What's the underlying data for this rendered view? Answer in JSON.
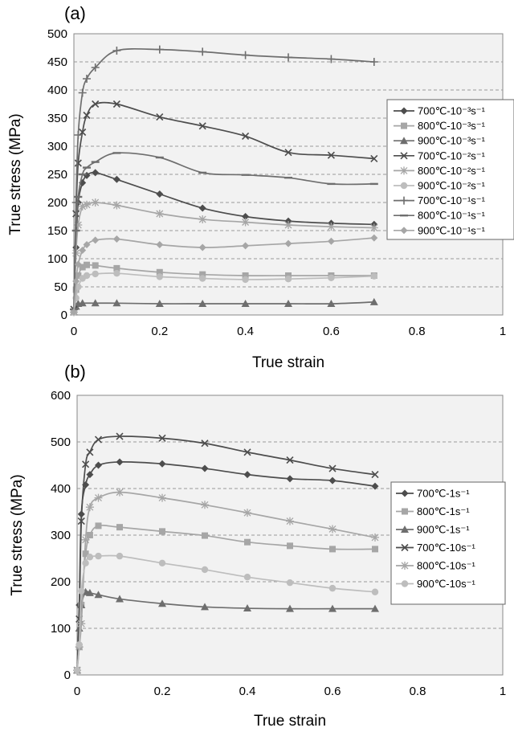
{
  "chart_data": [
    {
      "panel": "(a)",
      "type": "line",
      "xlabel": "True strain",
      "ylabel": "True stress (MPa)",
      "xlim": [
        0,
        1
      ],
      "ylim": [
        0,
        500
      ],
      "xticks": [
        "0",
        "0.2",
        "0.4",
        "0.6",
        "0.8",
        "1"
      ],
      "yticks": [
        "0",
        "50",
        "100",
        "150",
        "200",
        "250",
        "300",
        "350",
        "400",
        "450",
        "500"
      ],
      "grid": "horizontal dashed",
      "legend_position": "right",
      "series": [
        {
          "name": "700℃-10⁻³s⁻¹",
          "color": "#4d4d4d",
          "marker": "diamond",
          "x": [
            0,
            0.005,
            0.01,
            0.02,
            0.03,
            0.05,
            0.1,
            0.2,
            0.3,
            0.4,
            0.5,
            0.6,
            0.7
          ],
          "y": [
            5,
            120,
            200,
            235,
            248,
            253,
            241,
            215,
            190,
            175,
            167,
            163,
            161
          ]
        },
        {
          "name": "800℃-10⁻³s⁻¹",
          "color": "#a6a6a6",
          "marker": "square",
          "x": [
            0,
            0.005,
            0.01,
            0.02,
            0.03,
            0.05,
            0.1,
            0.2,
            0.3,
            0.4,
            0.5,
            0.6,
            0.7
          ],
          "y": [
            5,
            45,
            70,
            85,
            89,
            88,
            83,
            76,
            72,
            70,
            70,
            70,
            70
          ]
        },
        {
          "name": "900℃-10⁻³s⁻¹",
          "color": "#6e6e6e",
          "marker": "triangle",
          "x": [
            0,
            0.005,
            0.01,
            0.02,
            0.05,
            0.1,
            0.2,
            0.3,
            0.4,
            0.5,
            0.6,
            0.7
          ],
          "y": [
            5,
            15,
            20,
            21,
            21,
            21,
            20,
            20,
            20,
            20,
            20,
            23
          ]
        },
        {
          "name": "700℃-10⁻²s⁻¹",
          "color": "#4d4d4d",
          "marker": "x",
          "x": [
            0,
            0.005,
            0.01,
            0.02,
            0.03,
            0.05,
            0.1,
            0.2,
            0.3,
            0.4,
            0.5,
            0.6,
            0.7
          ],
          "y": [
            10,
            180,
            270,
            325,
            355,
            375,
            375,
            352,
            336,
            318,
            289,
            284,
            278
          ]
        },
        {
          "name": "800℃-10⁻²s⁻¹",
          "color": "#a6a6a6",
          "marker": "asterisk",
          "x": [
            0,
            0.005,
            0.01,
            0.02,
            0.03,
            0.05,
            0.1,
            0.2,
            0.3,
            0.4,
            0.5,
            0.6,
            0.7
          ],
          "y": [
            5,
            110,
            160,
            193,
            196,
            200,
            195,
            180,
            170,
            165,
            160,
            157,
            155
          ]
        },
        {
          "name": "900℃-10⁻²s⁻¹",
          "color": "#bdbdbd",
          "marker": "circle",
          "x": [
            0,
            0.005,
            0.01,
            0.02,
            0.03,
            0.05,
            0.1,
            0.2,
            0.3,
            0.4,
            0.5,
            0.6,
            0.7
          ],
          "y": [
            5,
            30,
            50,
            65,
            70,
            73,
            74,
            68,
            65,
            63,
            64,
            66,
            69
          ]
        },
        {
          "name": "700℃-10⁻¹s⁻¹",
          "color": "#6e6e6e",
          "marker": "plus",
          "x": [
            0,
            0.005,
            0.01,
            0.02,
            0.03,
            0.05,
            0.1,
            0.2,
            0.3,
            0.4,
            0.5,
            0.6,
            0.7
          ],
          "y": [
            10,
            200,
            320,
            395,
            420,
            440,
            470,
            472,
            468,
            462,
            458,
            455,
            450
          ]
        },
        {
          "name": "800℃-10⁻¹s⁻¹",
          "color": "#6e6e6e",
          "marker": "dash",
          "x": [
            0,
            0.005,
            0.01,
            0.02,
            0.03,
            0.05,
            0.1,
            0.2,
            0.3,
            0.4,
            0.5,
            0.6,
            0.7
          ],
          "y": [
            10,
            150,
            210,
            250,
            262,
            272,
            288,
            280,
            253,
            249,
            244,
            233,
            233
          ]
        },
        {
          "name": "900℃-10⁻¹s⁻¹",
          "color": "#a6a6a6",
          "marker": "diamond",
          "x": [
            0,
            0.005,
            0.01,
            0.02,
            0.03,
            0.05,
            0.1,
            0.2,
            0.3,
            0.4,
            0.5,
            0.6,
            0.7
          ],
          "y": [
            5,
            60,
            90,
            115,
            125,
            133,
            135,
            125,
            120,
            123,
            127,
            131,
            137
          ]
        }
      ]
    },
    {
      "panel": "(b)",
      "type": "line",
      "xlabel": "True strain",
      "ylabel": "True stress (MPa)",
      "xlim": [
        0,
        1
      ],
      "ylim": [
        0,
        600
      ],
      "xticks": [
        "0",
        "0.2",
        "0.4",
        "0.6",
        "0.8",
        "1"
      ],
      "yticks": [
        "0",
        "100",
        "200",
        "300",
        "400",
        "500",
        "600"
      ],
      "grid": "horizontal dashed",
      "legend_position": "right",
      "series": [
        {
          "name": "700℃-1s⁻¹",
          "color": "#4d4d4d",
          "marker": "diamond",
          "x": [
            0,
            0.005,
            0.01,
            0.02,
            0.03,
            0.05,
            0.1,
            0.2,
            0.3,
            0.4,
            0.5,
            0.6,
            0.7
          ],
          "y": [
            10,
            150,
            345,
            408,
            430,
            450,
            457,
            453,
            443,
            430,
            421,
            417,
            405
          ]
        },
        {
          "name": "800℃-1s⁻¹",
          "color": "#a6a6a6",
          "marker": "square",
          "x": [
            0,
            0.005,
            0.01,
            0.02,
            0.03,
            0.05,
            0.1,
            0.2,
            0.3,
            0.4,
            0.5,
            0.6,
            0.7
          ],
          "y": [
            10,
            60,
            150,
            260,
            300,
            320,
            317,
            308,
            299,
            285,
            277,
            270,
            270
          ]
        },
        {
          "name": "900℃-1s⁻¹",
          "color": "#6e6e6e",
          "marker": "triangle",
          "x": [
            0,
            0.005,
            0.01,
            0.02,
            0.03,
            0.05,
            0.1,
            0.2,
            0.3,
            0.4,
            0.5,
            0.6,
            0.7
          ],
          "y": [
            10,
            100,
            150,
            178,
            176,
            172,
            163,
            153,
            146,
            143,
            142,
            142,
            142
          ]
        },
        {
          "name": "700℃-10s⁻¹",
          "color": "#4d4d4d",
          "marker": "x",
          "x": [
            0,
            0.005,
            0.01,
            0.02,
            0.03,
            0.05,
            0.1,
            0.2,
            0.3,
            0.4,
            0.5,
            0.6,
            0.7
          ],
          "y": [
            10,
            120,
            330,
            452,
            478,
            505,
            512,
            508,
            497,
            478,
            461,
            443,
            430
          ]
        },
        {
          "name": "800℃-10s⁻¹",
          "color": "#a6a6a6",
          "marker": "asterisk",
          "x": [
            0,
            0.005,
            0.01,
            0.02,
            0.03,
            0.05,
            0.1,
            0.2,
            0.3,
            0.4,
            0.5,
            0.6,
            0.7
          ],
          "y": [
            10,
            60,
            110,
            290,
            360,
            380,
            392,
            380,
            365,
            348,
            330,
            313,
            295
          ]
        },
        {
          "name": "900℃-10s⁻¹",
          "color": "#bdbdbd",
          "marker": "circle",
          "x": [
            0,
            0.005,
            0.01,
            0.02,
            0.03,
            0.05,
            0.1,
            0.2,
            0.3,
            0.4,
            0.5,
            0.6,
            0.7
          ],
          "y": [
            10,
            65,
            180,
            240,
            253,
            255,
            255,
            240,
            226,
            210,
            198,
            186,
            178
          ]
        }
      ]
    }
  ]
}
